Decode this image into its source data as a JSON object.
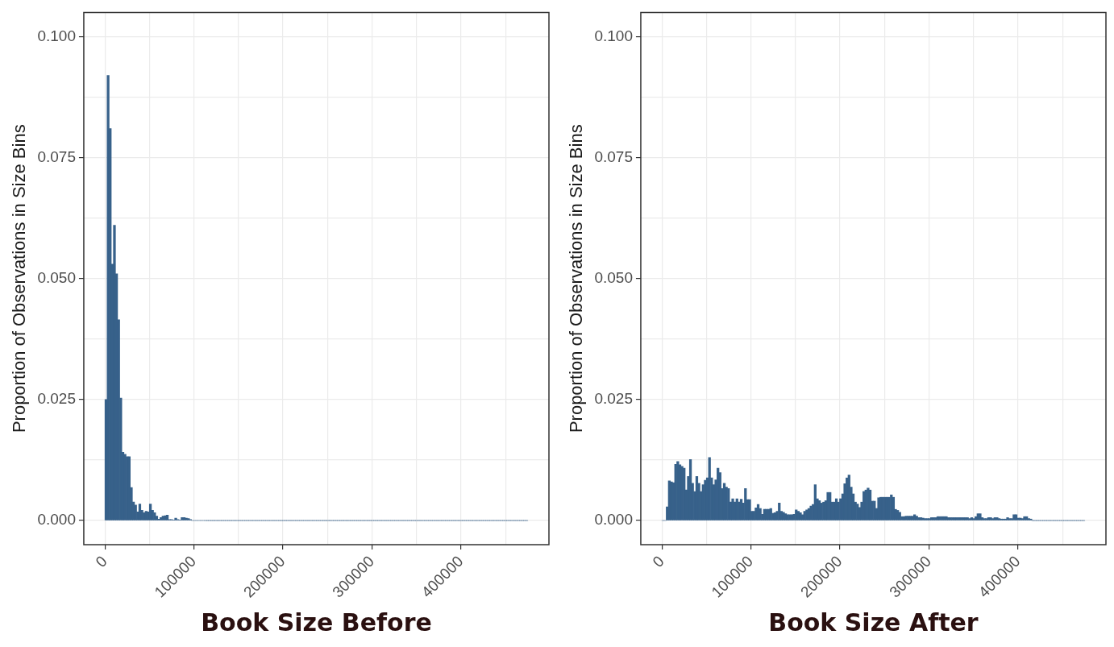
{
  "chart_data": [
    {
      "type": "histogram",
      "xlabel": "Book Size Before",
      "ylabel": "Proportion of Observations in Size Bins",
      "color": "#37618a",
      "grid": true,
      "xlim": [
        -23750,
        498750
      ],
      "ylim": [
        -0.005,
        0.105
      ],
      "xticks": [
        0,
        {
          "value": 50000,
          "label": null
        },
        100000,
        {
          "value": 150000,
          "label": null
        },
        200000,
        {
          "value": 250000,
          "label": null
        },
        300000,
        {
          "value": 350000,
          "label": null
        },
        400000,
        {
          "value": 450000,
          "label": null
        }
      ],
      "yticks": [
        {
          "value": 0,
          "label": "0.000"
        },
        {
          "value": 0.0125,
          "label": null
        },
        {
          "value": 0.025,
          "label": "0.025"
        },
        {
          "value": 0.0375,
          "label": null
        },
        {
          "value": 0.05,
          "label": "0.050"
        },
        {
          "value": 0.0625,
          "label": null
        },
        {
          "value": 0.075,
          "label": "0.075"
        },
        {
          "value": 0.0875,
          "label": null
        },
        {
          "value": 0.1,
          "label": "0.100"
        }
      ],
      "bins": [
        0,
        2375,
        4750,
        7125,
        9500,
        11875,
        14250,
        16625,
        19000,
        21375,
        23750,
        26125,
        28500,
        30875,
        33250,
        35625,
        38000,
        40375,
        42750,
        45125,
        47500,
        49875,
        52250,
        54625,
        57000,
        59375,
        61750,
        64125,
        66500,
        68875,
        71250,
        73625,
        76000,
        78375,
        80750,
        83125,
        85500,
        87875,
        90250,
        92625,
        95000,
        97375,
        99750,
        102125,
        104500,
        106875,
        109250,
        111625,
        114000,
        116375,
        118750,
        121125,
        123500,
        125875,
        128250,
        130625,
        133000,
        135375,
        137750,
        140125,
        142500,
        144875,
        147250,
        149625,
        152000,
        154375,
        156750,
        159125,
        161500,
        163875,
        166250,
        168625,
        171000,
        173375,
        175750,
        178125,
        180500,
        182875,
        185250,
        187625,
        190000,
        192375,
        194750,
        197125,
        199500,
        201875,
        204250,
        206625,
        209000,
        211375,
        213750,
        216125,
        218500,
        220875,
        223250,
        225625,
        228000,
        230375,
        232750,
        235125,
        237500,
        239875,
        242250,
        244625,
        247000,
        249375,
        251750,
        254125,
        256500,
        258875,
        261250,
        263625,
        266000,
        268375,
        270750,
        273125,
        275500,
        277875,
        280250,
        282625,
        285000,
        287375,
        289750,
        292125,
        294500,
        296875,
        299250,
        301625,
        304000,
        306375,
        308750,
        311125,
        313500,
        315875,
        318250,
        320625,
        323000,
        325375,
        327750,
        330125,
        332500,
        334875,
        337250,
        339625,
        342000,
        344375,
        346750,
        349125,
        351500,
        353875,
        356250,
        358625,
        361000,
        363375,
        365750,
        368125,
        370500,
        372875,
        375250,
        377625,
        380000,
        382375,
        384750,
        387125,
        389500,
        391875,
        394250,
        396625,
        399000,
        401375,
        403750,
        406125,
        408500,
        410875,
        413250,
        415625,
        418000,
        420375,
        422750,
        425125,
        427500,
        429875,
        432250,
        434625,
        437000,
        439375,
        441750,
        444125,
        446500,
        448875,
        451250,
        453625,
        456000,
        458375,
        460750,
        463125,
        465500,
        467875,
        470250,
        472625,
        475000
      ],
      "values": [
        0.025,
        0.092,
        0.081,
        0.053,
        0.061,
        0.051,
        0.0415,
        0.0253,
        0.0141,
        0.0137,
        0.0132,
        0.0132,
        0.0068,
        0.0038,
        0.0032,
        0.0018,
        0.0034,
        0.0021,
        0.0016,
        0.0019,
        0.0018,
        0.0034,
        0.0021,
        0.0016,
        0.0009,
        0.0003,
        0.0006,
        0.0009,
        0.001,
        0.0011,
        0.0002,
        0.0002,
        0.0001,
        0.0005,
        0.0002,
        0.0001,
        0.0006,
        0.0006,
        0.0005,
        0.0004,
        0.0002,
        0,
        0,
        0,
        0,
        0,
        0,
        0,
        0,
        0,
        0,
        0,
        0,
        0,
        0,
        0,
        0,
        0,
        0,
        0,
        0,
        0,
        0,
        0,
        0,
        0,
        0,
        0,
        0,
        0,
        0,
        0,
        0,
        0,
        0,
        0,
        0,
        0,
        0,
        0,
        0,
        0,
        0,
        0,
        0,
        0,
        0,
        0,
        0,
        0,
        0,
        0,
        0,
        0,
        0,
        0,
        0,
        0,
        0,
        0,
        0,
        0,
        0,
        0,
        0,
        0,
        0,
        0,
        0,
        0,
        0,
        0,
        0,
        0,
        0,
        0,
        0,
        0,
        0,
        0,
        0,
        0,
        0,
        0,
        0,
        0,
        0,
        0,
        0,
        0,
        0,
        0,
        0,
        0,
        0,
        0,
        0,
        0,
        0,
        0,
        0,
        0,
        0,
        0,
        0,
        0,
        0,
        0,
        0,
        0,
        0,
        0,
        0,
        0,
        0,
        0,
        0,
        0,
        0,
        0,
        0,
        0,
        0,
        0,
        0,
        0,
        0,
        0,
        0,
        0,
        0,
        0,
        0,
        0,
        0,
        0,
        0,
        0,
        0,
        0,
        0,
        0,
        0,
        0,
        0,
        0,
        0,
        0,
        0,
        0,
        0,
        0,
        0,
        0,
        0,
        0,
        0,
        0,
        0,
        0
      ]
    },
    {
      "type": "histogram",
      "xlabel": "Book Size After",
      "ylabel": "Proportion of Observations in Size Bins",
      "color": "#37618a",
      "grid": true,
      "xlim": [
        -23750,
        498750
      ],
      "ylim": [
        -0.005,
        0.105
      ],
      "xticks": [
        0,
        {
          "value": 50000,
          "label": null
        },
        100000,
        {
          "value": 150000,
          "label": null
        },
        200000,
        {
          "value": 250000,
          "label": null
        },
        300000,
        {
          "value": 350000,
          "label": null
        },
        400000,
        {
          "value": 450000,
          "label": null
        }
      ],
      "yticks": [
        {
          "value": 0,
          "label": "0.000"
        },
        {
          "value": 0.0125,
          "label": null
        },
        {
          "value": 0.025,
          "label": "0.025"
        },
        {
          "value": 0.0375,
          "label": null
        },
        {
          "value": 0.05,
          "label": "0.050"
        },
        {
          "value": 0.0625,
          "label": null
        },
        {
          "value": 0.075,
          "label": "0.075"
        },
        {
          "value": 0.0875,
          "label": null
        },
        {
          "value": 0.1,
          "label": "0.100"
        }
      ],
      "bins": [
        0,
        2375,
        4750,
        7125,
        9500,
        11875,
        14250,
        16625,
        19000,
        21375,
        23750,
        26125,
        28500,
        30875,
        33250,
        35625,
        38000,
        40375,
        42750,
        45125,
        47500,
        49875,
        52250,
        54625,
        57000,
        59375,
        61750,
        64125,
        66500,
        68875,
        71250,
        73625,
        76000,
        78375,
        80750,
        83125,
        85500,
        87875,
        90250,
        92625,
        95000,
        97375,
        99750,
        102125,
        104500,
        106875,
        109250,
        111625,
        114000,
        116375,
        118750,
        121125,
        123500,
        125875,
        128250,
        130625,
        133000,
        135375,
        137750,
        140125,
        142500,
        144875,
        147250,
        149625,
        152000,
        154375,
        156750,
        159125,
        161500,
        163875,
        166250,
        168625,
        171000,
        173375,
        175750,
        178125,
        180500,
        182875,
        185250,
        187625,
        190000,
        192375,
        194750,
        197125,
        199500,
        201875,
        204250,
        206625,
        209000,
        211375,
        213750,
        216125,
        218500,
        220875,
        223250,
        225625,
        228000,
        230375,
        232750,
        235125,
        237500,
        239875,
        242250,
        244625,
        247000,
        249375,
        251750,
        254125,
        256500,
        258875,
        261250,
        263625,
        266000,
        268375,
        270750,
        273125,
        275500,
        277875,
        280250,
        282625,
        285000,
        287375,
        289750,
        292125,
        294500,
        296875,
        299250,
        301625,
        304000,
        306375,
        308750,
        311125,
        313500,
        315875,
        318250,
        320625,
        323000,
        325375,
        327750,
        330125,
        332500,
        334875,
        337250,
        339625,
        342000,
        344375,
        346750,
        349125,
        351500,
        353875,
        356250,
        358625,
        361000,
        363375,
        365750,
        368125,
        370500,
        372875,
        375250,
        377625,
        380000,
        382375,
        384750,
        387125,
        389500,
        391875,
        394250,
        396625,
        399000,
        401375,
        403750,
        406125,
        408500,
        410875,
        413250,
        415625,
        418000,
        420375,
        422750,
        425125,
        427500,
        429875,
        432250,
        434625,
        437000,
        439375,
        441750,
        444125,
        446500,
        448875,
        451250,
        453625,
        456000,
        458375,
        460750,
        463125,
        465500,
        467875,
        470250,
        472625,
        475000
      ],
      "values": [
        0,
        0,
        0.0028,
        0.0082,
        0.008,
        0.0078,
        0.0116,
        0.0122,
        0.0115,
        0.0112,
        0.0108,
        0.0063,
        0.0091,
        0.0126,
        0.0077,
        0.006,
        0.0091,
        0.0077,
        0.006,
        0.0074,
        0.0083,
        0.0088,
        0.013,
        0.0088,
        0.0074,
        0.0084,
        0.0108,
        0.0099,
        0.0066,
        0.0077,
        0.0069,
        0.0066,
        0.0038,
        0.0045,
        0.0038,
        0.0045,
        0.0038,
        0.0044,
        0.0036,
        0.0066,
        0.0043,
        0.0043,
        0.0019,
        0.0019,
        0.0026,
        0.0033,
        0.0025,
        0.0013,
        0.0023,
        0.0023,
        0.0023,
        0.0025,
        0.0015,
        0.0016,
        0.0019,
        0.0036,
        0.0019,
        0.0017,
        0.0014,
        0.0012,
        0.0012,
        0.0012,
        0.0013,
        0.0022,
        0.0019,
        0.0016,
        0.0012,
        0.0019,
        0.0022,
        0.0025,
        0.003,
        0.0033,
        0.0074,
        0.0045,
        0.0041,
        0.0036,
        0.0038,
        0.0041,
        0.0058,
        0.0058,
        0.0038,
        0.0038,
        0.0045,
        0.0038,
        0.0045,
        0.0055,
        0.0076,
        0.0088,
        0.0094,
        0.0069,
        0.0055,
        0.0038,
        0.0034,
        0.0027,
        0.0038,
        0.006,
        0.0063,
        0.0067,
        0.0063,
        0.004,
        0.004,
        0.0025,
        0.0047,
        0.0048,
        0.0048,
        0.0048,
        0.0048,
        0.0048,
        0.0053,
        0.0048,
        0.0023,
        0.0021,
        0.0017,
        0.0008,
        0.0008,
        0.0009,
        0.0009,
        0.0009,
        0.0009,
        0.0012,
        0.0009,
        0.0006,
        0.0006,
        0.0005,
        0.0004,
        0.0004,
        0.0004,
        0.0006,
        0.0006,
        0.0006,
        0.0008,
        0.0008,
        0.0008,
        0.0008,
        0.0008,
        0.0006,
        0.0006,
        0.0006,
        0.0006,
        0.0006,
        0.0006,
        0.0006,
        0.0006,
        0.0006,
        0.0006,
        0.0004,
        0.0006,
        0.0004,
        0.0008,
        0.0014,
        0.0014,
        0.0006,
        0.0004,
        0.0004,
        0.0006,
        0.0006,
        0.0004,
        0.0006,
        0.0006,
        0.0004,
        0.0003,
        0.0003,
        0.0003,
        0.0006,
        0.0004,
        0.0004,
        0.0012,
        0.0012,
        0.0005,
        0.0005,
        0.0004,
        0.0008,
        0.0008,
        0.0004,
        0.0003,
        0,
        0,
        0,
        0,
        0,
        0,
        0,
        0,
        0,
        0,
        0,
        0,
        0,
        0,
        0,
        0,
        0,
        0,
        0,
        0,
        0,
        0,
        0,
        0,
        0
      ]
    }
  ]
}
